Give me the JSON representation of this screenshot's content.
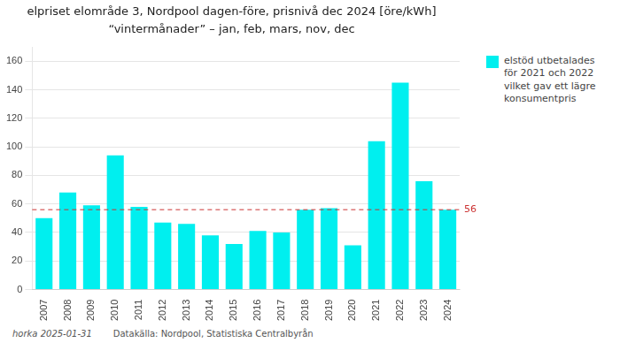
{
  "chart_data": {
    "type": "bar",
    "title": "elpriset elområde 3, Nordpool dagen-före, prisnivå dec 2024 [öre/kWh]",
    "subtitle": "“vintermånader” – jan, feb, mars, nov, dec",
    "categories": [
      "2007",
      "2008",
      "2009",
      "2010",
      "2011",
      "2012",
      "2013",
      "2014",
      "2015",
      "2016",
      "2017",
      "2018",
      "2019",
      "2020",
      "2021",
      "2022",
      "2023",
      "2024"
    ],
    "series": [
      {
        "name": "elstöd utbetalades\nför 2021 och 2022\nvilket gav ett lägre\nkonsumentpris",
        "color": "#00EFEF",
        "values": [
          50,
          68,
          59,
          94,
          58,
          47,
          46,
          38,
          32,
          41,
          40,
          56,
          57,
          31,
          104,
          145,
          76,
          56
        ]
      }
    ],
    "ylim": [
      0,
      170
    ],
    "yticks": [
      0,
      20,
      40,
      60,
      80,
      100,
      120,
      140,
      160
    ],
    "grid": true,
    "legend": "right",
    "annotations": [
      {
        "y": 56,
        "text": "56",
        "color": "#CC3333",
        "line_style": "dashed"
      }
    ],
    "footer": [
      "horka 2025-01-31",
      "Datakälla: Nordpool, Statistiska Centralbyrån"
    ]
  }
}
